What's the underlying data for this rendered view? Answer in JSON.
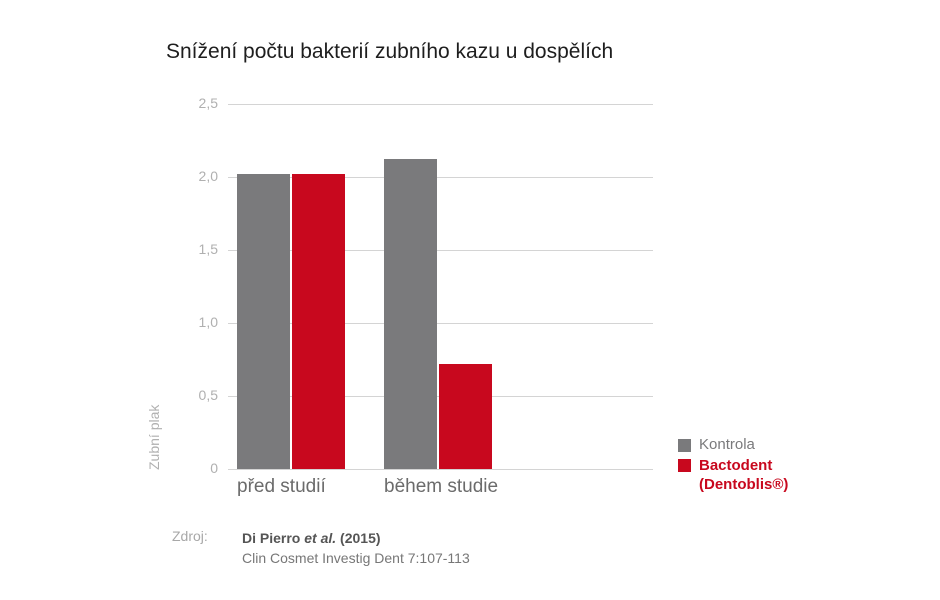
{
  "chart_data": {
    "type": "bar",
    "title": "Snížení počtu bakterií zubního kazu u dospělích",
    "xlabel": "",
    "ylabel": "Zubní plak",
    "ylim": [
      0,
      2.5
    ],
    "yticks": [
      "0",
      "0,5",
      "1,0",
      "1,5",
      "2,0",
      "2,5"
    ],
    "grid": true,
    "legend_position": "right-bottom",
    "categories": [
      "před studií",
      "během studie"
    ],
    "series": [
      {
        "name": "Kontrola",
        "color": "#7a7a7c",
        "values": [
          2.02,
          2.12
        ]
      },
      {
        "name": "Bactodent (Dentoblis®)",
        "color": "#c8081e",
        "values": [
          2.02,
          0.72
        ]
      }
    ]
  },
  "legend": {
    "items": [
      {
        "label": "Kontrola",
        "color": "#7a7a7c",
        "text_color": "#7a7a7c"
      },
      {
        "label": "Bactodent",
        "label2": "(Dentoblis®)",
        "color": "#c8081e",
        "text_color": "#c8081e"
      }
    ]
  },
  "source": {
    "label": "Zdroj:",
    "author": "Di Pierro",
    "etal": "et al.",
    "year": "(2015)",
    "journal": "Clin Cosmet Investig Dent 7:107-113"
  }
}
